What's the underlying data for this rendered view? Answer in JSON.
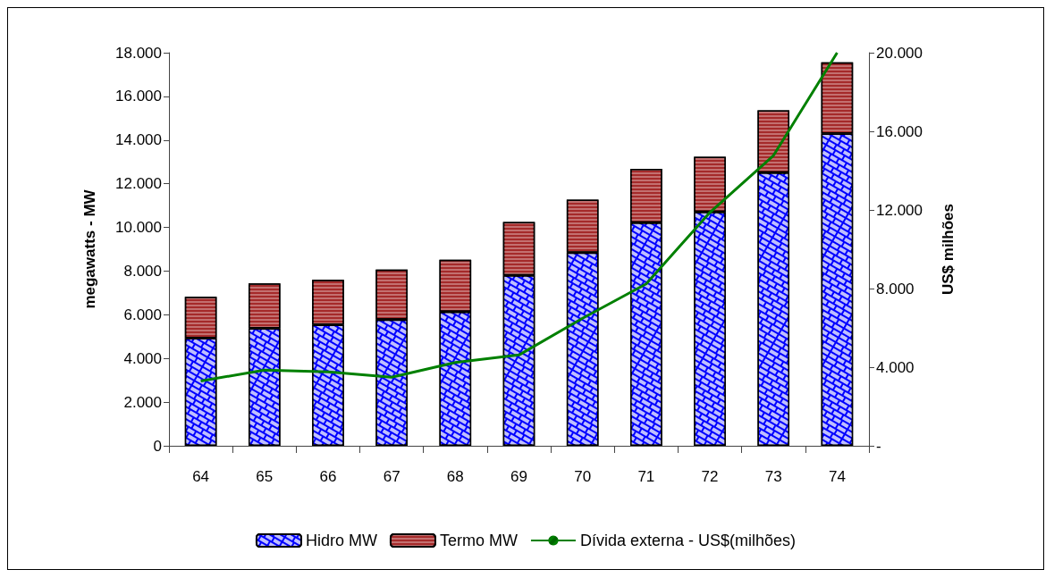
{
  "chart_data": {
    "type": "bar",
    "stacked": true,
    "categories": [
      "64",
      "65",
      "66",
      "67",
      "68",
      "69",
      "70",
      "71",
      "72",
      "73",
      "74"
    ],
    "series": [
      {
        "name": "Hidro MW",
        "color": "#0000ff",
        "values": [
          4930,
          5380,
          5540,
          5780,
          6140,
          7800,
          8850,
          10220,
          10710,
          12510,
          14300
        ]
      },
      {
        "name": "Termo MW",
        "color": "#a52a2a",
        "values": [
          1890,
          2060,
          2060,
          2290,
          2380,
          2450,
          2420,
          2460,
          2520,
          2850,
          3260
        ]
      },
      {
        "name": "Dívida externa - US$(milhões)",
        "type": "line",
        "axis": "y2",
        "color": "#008000",
        "values": [
          3300,
          3850,
          3760,
          3490,
          4240,
          4620,
          6490,
          8240,
          11870,
          14770,
          20000
        ]
      }
    ],
    "ylabel": "megawatts - MW",
    "y2label": "US$ milhões",
    "ylim": [
      0,
      18000
    ],
    "yticks": [
      {
        "value": 0,
        "label": "0"
      },
      {
        "value": 2000,
        "label": "2.000"
      },
      {
        "value": 4000,
        "label": "4.000"
      },
      {
        "value": 6000,
        "label": "6.000"
      },
      {
        "value": 8000,
        "label": "8.000"
      },
      {
        "value": 10000,
        "label": "10.000"
      },
      {
        "value": 12000,
        "label": "12.000"
      },
      {
        "value": 14000,
        "label": "14.000"
      },
      {
        "value": 16000,
        "label": "16.000"
      },
      {
        "value": 18000,
        "label": "18.000"
      }
    ],
    "y2lim": [
      0,
      20000
    ],
    "y2ticks": [
      {
        "value": 0,
        "label": "-"
      },
      {
        "value": 4000,
        "label": "4.000"
      },
      {
        "value": 8000,
        "label": "8.000"
      },
      {
        "value": 12000,
        "label": "12.000"
      },
      {
        "value": 16000,
        "label": "16.000"
      },
      {
        "value": 20000,
        "label": "20.000"
      }
    ],
    "legend": "bottom",
    "grid": false,
    "marker": "none",
    "line_style": "solid"
  }
}
